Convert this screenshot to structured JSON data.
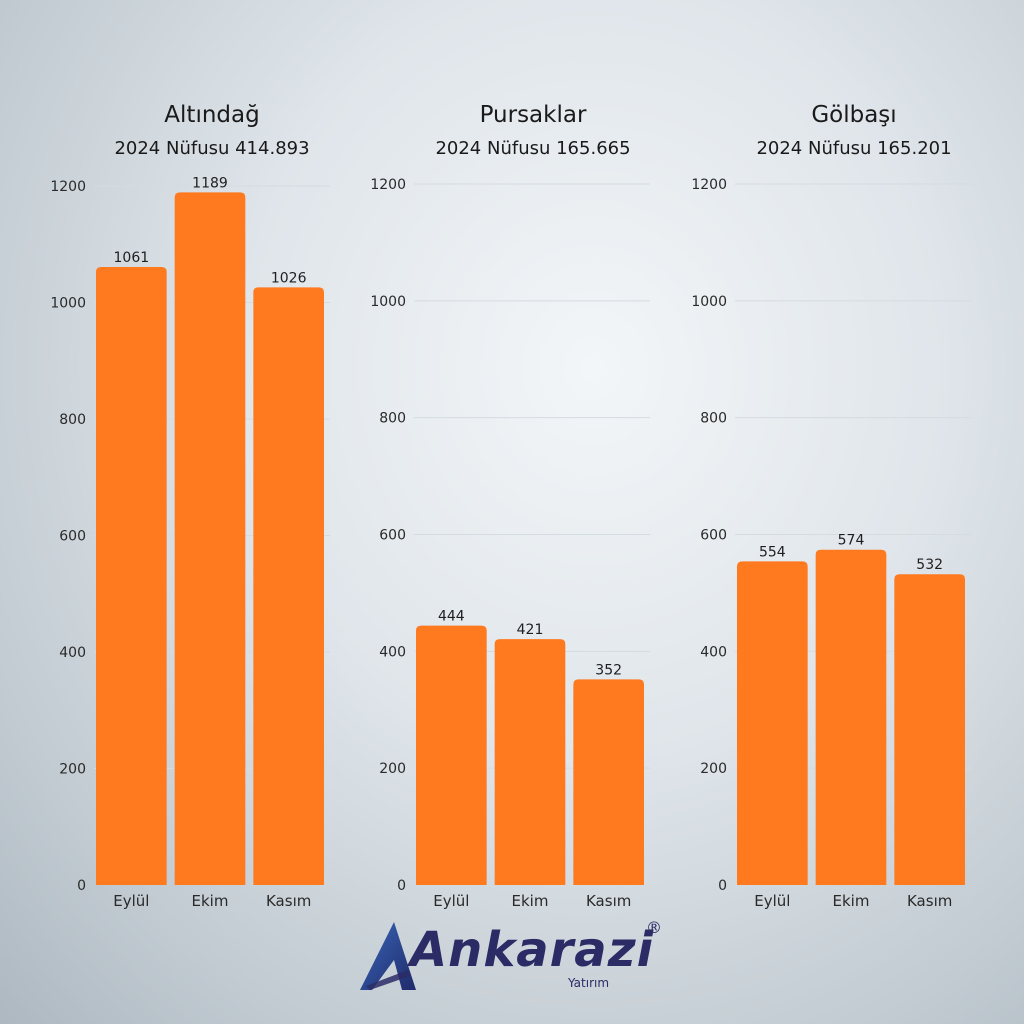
{
  "chart_data": [
    {
      "type": "bar",
      "title": "Altındağ",
      "subtitle": "2024 Nüfusu 414.893",
      "categories": [
        "Eylül",
        "Ekim",
        "Kasım"
      ],
      "values": [
        1061,
        1189,
        1026
      ],
      "ylim": [
        0,
        1200
      ],
      "yticks": [
        0,
        200,
        400,
        600,
        800,
        1000,
        1200
      ],
      "grid": true,
      "color": "#ff7a1f"
    },
    {
      "type": "bar",
      "title": "Pursaklar",
      "subtitle": "2024 Nüfusu 165.665",
      "categories": [
        "Eylül",
        "Ekim",
        "Kasım"
      ],
      "values": [
        444,
        421,
        352
      ],
      "ylim": [
        0,
        1200
      ],
      "yticks": [
        0,
        200,
        400,
        600,
        800,
        1000,
        1200
      ],
      "grid": true,
      "color": "#ff7a1f"
    },
    {
      "type": "bar",
      "title": "Gölbaşı",
      "subtitle": "2024 Nüfusu 165.201",
      "categories": [
        "Eylül",
        "Ekim",
        "Kasım"
      ],
      "values": [
        554,
        574,
        532
      ],
      "ylim": [
        0,
        1200
      ],
      "yticks": [
        0,
        200,
        400,
        600,
        800,
        1000,
        1200
      ],
      "grid": true,
      "color": "#ff7a1f"
    }
  ],
  "logo": {
    "name": "Ankarazi",
    "sub": "Yatırım",
    "registered": "®",
    "color": "#2b2b66"
  }
}
